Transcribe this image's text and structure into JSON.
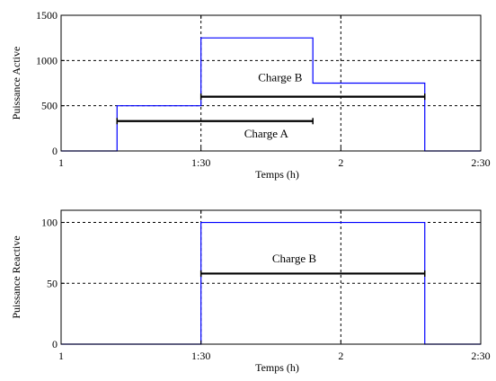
{
  "chart_data": [
    {
      "type": "line",
      "xlabel": "Temps (h)",
      "ylabel": "Puissance  Active",
      "xlim": [
        60,
        150
      ],
      "ylim": [
        0,
        1500
      ],
      "x_ticks": [
        60,
        90,
        120,
        150
      ],
      "x_tick_labels": [
        "1",
        "1:30",
        "2",
        "2:30"
      ],
      "y_ticks": [
        0,
        500,
        1000,
        1500
      ],
      "y_tick_labels": [
        "0",
        "500",
        "1000",
        "1500"
      ],
      "grid": true,
      "series": [
        {
          "color": "#0000ff",
          "x": [
            60,
            72,
            72,
            90,
            90,
            114,
            114,
            138,
            138,
            150
          ],
          "y": [
            0,
            0,
            500,
            500,
            1250,
            1250,
            750,
            750,
            0,
            0
          ]
        }
      ],
      "intervals": [
        {
          "label": "Charge  A",
          "x_start": 72,
          "x_end": 114,
          "y": 330,
          "label_x": 104,
          "label_y": 150
        },
        {
          "label": "Charge  B",
          "x_start": 90,
          "x_end": 138,
          "y": 600,
          "label_x": 107,
          "label_y": 770
        }
      ]
    },
    {
      "type": "line",
      "xlabel": "Temps (h)",
      "ylabel": "Puissance  Reactive",
      "xlim": [
        60,
        150
      ],
      "ylim": [
        0,
        110
      ],
      "x_ticks": [
        60,
        90,
        120,
        150
      ],
      "x_tick_labels": [
        "1",
        "1:30",
        "2",
        "2:30"
      ],
      "y_ticks": [
        0,
        50,
        100
      ],
      "y_tick_labels": [
        "0",
        "50",
        "100"
      ],
      "grid": true,
      "series": [
        {
          "color": "#0000ff",
          "x": [
            60,
            90,
            90,
            138,
            138,
            150
          ],
          "y": [
            0,
            0,
            100,
            100,
            0,
            0
          ]
        }
      ],
      "intervals": [
        {
          "label": "Charge  B",
          "x_start": 90,
          "x_end": 138,
          "y": 58,
          "label_x": 110,
          "label_y": 67
        }
      ]
    }
  ]
}
